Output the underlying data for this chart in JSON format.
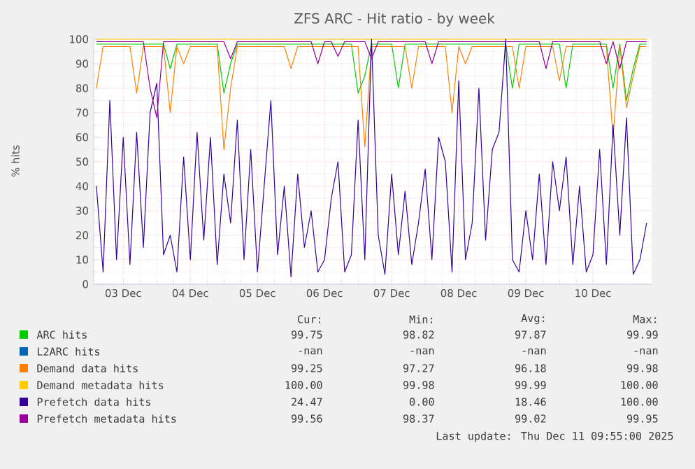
{
  "chart_data": {
    "type": "line",
    "title": "ZFS ARC - Hit ratio - by week",
    "ylabel": "% hits",
    "x": [
      "2025-12-02T14:24",
      "2025-12-02T16:48",
      "2025-12-02T19:12",
      "2025-12-02T21:36",
      "2025-12-03T00:00",
      "2025-12-03T02:24",
      "2025-12-03T04:48",
      "2025-12-03T07:12",
      "2025-12-03T09:36",
      "2025-12-03T12:00",
      "2025-12-03T14:24",
      "2025-12-03T16:48",
      "2025-12-03T19:12",
      "2025-12-03T21:36",
      "2025-12-04T00:00",
      "2025-12-04T02:24",
      "2025-12-04T04:48",
      "2025-12-04T07:12",
      "2025-12-04T09:36",
      "2025-12-04T12:00",
      "2025-12-04T14:24",
      "2025-12-04T16:48",
      "2025-12-04T19:12",
      "2025-12-04T21:36",
      "2025-12-05T00:00",
      "2025-12-05T02:24",
      "2025-12-05T04:48",
      "2025-12-05T07:12",
      "2025-12-05T09:36",
      "2025-12-05T12:00",
      "2025-12-05T14:24",
      "2025-12-05T16:48",
      "2025-12-05T19:12",
      "2025-12-05T21:36",
      "2025-12-06T00:00",
      "2025-12-06T02:24",
      "2025-12-06T04:48",
      "2025-12-06T07:12",
      "2025-12-06T09:36",
      "2025-12-06T12:00",
      "2025-12-06T14:24",
      "2025-12-06T16:48",
      "2025-12-06T19:12",
      "2025-12-06T21:36",
      "2025-12-07T00:00",
      "2025-12-07T02:24",
      "2025-12-07T04:48",
      "2025-12-07T07:12",
      "2025-12-07T09:36",
      "2025-12-07T12:00",
      "2025-12-07T14:24",
      "2025-12-07T16:48",
      "2025-12-07T19:12",
      "2025-12-07T21:36",
      "2025-12-08T00:00",
      "2025-12-08T02:24",
      "2025-12-08T04:48",
      "2025-12-08T07:12",
      "2025-12-08T09:36",
      "2025-12-08T12:00",
      "2025-12-08T14:24",
      "2025-12-08T16:48",
      "2025-12-08T19:12",
      "2025-12-08T21:36",
      "2025-12-09T00:00",
      "2025-12-09T02:24",
      "2025-12-09T04:48",
      "2025-12-09T07:12",
      "2025-12-09T09:36",
      "2025-12-09T12:00",
      "2025-12-09T14:24",
      "2025-12-09T16:48",
      "2025-12-09T19:12",
      "2025-12-09T21:36",
      "2025-12-10T00:00",
      "2025-12-10T02:24",
      "2025-12-10T04:48",
      "2025-12-10T07:12",
      "2025-12-10T09:36",
      "2025-12-10T12:00",
      "2025-12-10T14:24",
      "2025-12-10T16:48",
      "2025-12-10T19:12"
    ],
    "series": [
      {
        "name": "ARC hits",
        "color": "#00cc00",
        "values": [
          98,
          98,
          98,
          98,
          98,
          98,
          98,
          98,
          98,
          98,
          98,
          88,
          98,
          98,
          98,
          98,
          98,
          98,
          98,
          78,
          90,
          98,
          98,
          98,
          98,
          98,
          98,
          98,
          98,
          98,
          98,
          98,
          98,
          98,
          98,
          98,
          98,
          98,
          98,
          78,
          85,
          98,
          98,
          98,
          98,
          80,
          98,
          98,
          98,
          98,
          98,
          98,
          98,
          98,
          98,
          98,
          98,
          98,
          98,
          98,
          98,
          98,
          80,
          98,
          98,
          98,
          98,
          98,
          98,
          98,
          80,
          98,
          98,
          98,
          98,
          98,
          98,
          80,
          98,
          75,
          88,
          98,
          98
        ]
      },
      {
        "name": "L2ARC hits",
        "color": "#0066b3",
        "values": [
          null,
          null,
          null,
          null,
          null,
          null,
          null,
          null,
          null,
          null,
          null,
          null,
          null,
          null,
          null,
          null,
          null,
          null,
          null,
          null,
          null,
          null,
          null,
          null,
          null,
          null,
          null,
          null,
          null,
          null,
          null,
          null,
          null,
          null,
          null,
          null,
          null,
          null,
          null,
          null,
          null,
          null,
          null,
          null,
          null,
          null,
          null,
          null,
          null,
          null,
          null,
          null,
          null,
          null,
          null,
          null,
          null,
          null,
          null,
          null,
          null,
          null,
          null,
          null,
          null,
          null,
          null,
          null,
          null,
          null,
          null,
          null,
          null,
          null,
          null,
          null,
          null,
          null,
          null,
          null,
          null,
          null,
          null
        ]
      },
      {
        "name": "Demand data hits",
        "color": "#ff8000",
        "values": [
          80,
          97,
          97,
          97,
          97,
          97,
          78,
          97,
          97,
          97,
          97,
          70,
          97,
          90,
          97,
          97,
          97,
          97,
          97,
          55,
          80,
          97,
          97,
          97,
          97,
          97,
          97,
          97,
          97,
          88,
          97,
          97,
          97,
          97,
          97,
          97,
          97,
          97,
          97,
          97,
          56,
          97,
          97,
          97,
          97,
          97,
          97,
          80,
          97,
          97,
          97,
          97,
          97,
          70,
          97,
          90,
          97,
          97,
          97,
          97,
          97,
          97,
          97,
          80,
          97,
          97,
          97,
          97,
          97,
          83,
          97,
          97,
          97,
          97,
          97,
          97,
          97,
          60,
          97,
          72,
          85,
          97,
          97
        ]
      },
      {
        "name": "Demand metadata hits",
        "color": "#ffcc00",
        "values": [
          100,
          100,
          100,
          100,
          100,
          100,
          100,
          100,
          100,
          100,
          100,
          100,
          100,
          100,
          100,
          100,
          100,
          100,
          100,
          100,
          100,
          100,
          100,
          100,
          100,
          100,
          100,
          100,
          100,
          100,
          100,
          100,
          100,
          100,
          100,
          100,
          100,
          100,
          100,
          100,
          100,
          100,
          100,
          100,
          100,
          100,
          100,
          100,
          100,
          100,
          100,
          100,
          100,
          100,
          100,
          100,
          100,
          100,
          100,
          100,
          100,
          100,
          100,
          100,
          100,
          100,
          100,
          100,
          100,
          100,
          100,
          100,
          100,
          100,
          100,
          100,
          100,
          100,
          100,
          100,
          100,
          100,
          100
        ]
      },
      {
        "name": "Prefetch data hits",
        "color": "#330099",
        "values": [
          40,
          5,
          75,
          10,
          60,
          8,
          62,
          15,
          70,
          82,
          12,
          20,
          5,
          52,
          10,
          62,
          18,
          60,
          8,
          45,
          25,
          67,
          10,
          55,
          5,
          40,
          75,
          12,
          40,
          3,
          45,
          15,
          30,
          5,
          10,
          35,
          50,
          5,
          12,
          67,
          10,
          100,
          20,
          4,
          45,
          12,
          38,
          8,
          25,
          47,
          10,
          60,
          50,
          5,
          83,
          10,
          25,
          80,
          18,
          55,
          62,
          100,
          10,
          5,
          30,
          10,
          45,
          8,
          50,
          30,
          52,
          8,
          40,
          5,
          12,
          55,
          8,
          65,
          20,
          68,
          4,
          10,
          25
        ]
      },
      {
        "name": "Prefetch metadata hits",
        "color": "#990099",
        "values": [
          99,
          99,
          99,
          99,
          99,
          99,
          99,
          99,
          80,
          68,
          99,
          99,
          99,
          99,
          99,
          99,
          99,
          99,
          99,
          99,
          92,
          99,
          99,
          99,
          99,
          99,
          99,
          99,
          99,
          99,
          99,
          99,
          99,
          90,
          99,
          99,
          93,
          99,
          99,
          99,
          99,
          92,
          99,
          99,
          99,
          99,
          99,
          99,
          99,
          99,
          90,
          99,
          99,
          99,
          99,
          99,
          99,
          99,
          99,
          99,
          99,
          99,
          99,
          99,
          99,
          99,
          99,
          88,
          99,
          99,
          99,
          99,
          99,
          99,
          99,
          99,
          90,
          99,
          88,
          99,
          99,
          99,
          99
        ]
      }
    ],
    "xlim": [
      "2025-12-02T13:26",
      "2025-12-10T21:00"
    ],
    "ylim": [
      0,
      100
    ],
    "xticks": [
      {
        "value": "2025-12-03",
        "label": "03 Dec"
      },
      {
        "value": "2025-12-04",
        "label": "04 Dec"
      },
      {
        "value": "2025-12-05",
        "label": "05 Dec"
      },
      {
        "value": "2025-12-06",
        "label": "06 Dec"
      },
      {
        "value": "2025-12-07",
        "label": "07 Dec"
      },
      {
        "value": "2025-12-08",
        "label": "08 Dec"
      },
      {
        "value": "2025-12-09",
        "label": "09 Dec"
      },
      {
        "value": "2025-12-10",
        "label": "10 Dec"
      }
    ],
    "yticks": [
      0,
      10,
      20,
      30,
      40,
      50,
      60,
      70,
      80,
      90,
      100
    ],
    "grid": true,
    "legend": "bottom",
    "annotations": [
      "Cur:",
      "Min:",
      "Avg:",
      "Max:",
      "99.75",
      "98.82",
      "97.87",
      "99.99",
      "-nan",
      "-nan",
      "-nan",
      "-nan",
      "99.25",
      "97.27",
      "96.18",
      "99.98",
      "100.00",
      "99.98",
      "99.99",
      "100.00",
      "24.47",
      "0.00",
      "18.46",
      "100.00",
      "99.56",
      "98.37",
      "99.02",
      "99.95",
      "Last update: Thu Dec 11 09:55:00 2025"
    ]
  }
}
